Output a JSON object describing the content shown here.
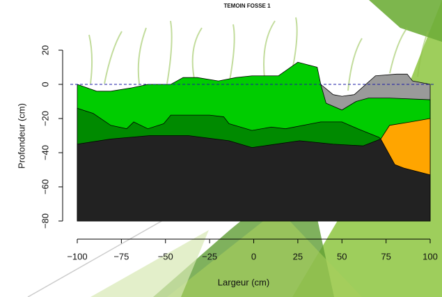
{
  "chart_data": {
    "type": "area",
    "title": "TEMOIN FOSSE 1",
    "x_label": "Largeur (cm)",
    "y_label": "Profondeur (cm)",
    "xlim": [
      -100,
      100
    ],
    "ylim": [
      -80,
      20
    ],
    "xticks": [
      {
        "value": -100,
        "label": "−100"
      },
      {
        "value": -75,
        "label": "−75"
      },
      {
        "value": -50,
        "label": "−50"
      },
      {
        "value": -25,
        "label": "−25"
      },
      0,
      25,
      50,
      75,
      100
    ],
    "yticks": [
      {
        "value": -80,
        "label": "−80"
      },
      {
        "value": -60,
        "label": "−60"
      },
      {
        "value": -40,
        "label": "−40"
      },
      {
        "value": -20,
        "label": "−20"
      },
      0,
      20
    ],
    "reference_line": {
      "value": 0,
      "color": "#1a1aa6"
    },
    "series": [
      {
        "color": "#9a9a9a",
        "x": [
          38,
          45,
          50,
          57,
          69,
          81,
          87,
          90,
          100
        ],
        "values": [
          0,
          -6,
          -7,
          -6,
          5,
          6,
          6,
          2,
          0
        ]
      },
      {
        "color": "#00cc00",
        "x": [
          -100,
          -89,
          -81,
          -69,
          -60,
          -47,
          -40,
          -32,
          -20,
          -10,
          -1,
          14,
          25,
          36,
          38,
          41,
          50,
          58,
          65,
          77,
          100
        ],
        "values": [
          0,
          -4,
          -4,
          -2,
          0,
          0,
          4,
          4,
          2,
          4,
          5,
          5,
          13,
          10,
          0,
          -11,
          -15,
          -10,
          -8,
          -8,
          -9
        ]
      },
      {
        "color": "#008a00",
        "x": [
          -100,
          -91,
          -81,
          -72,
          -68,
          -60,
          -51,
          -47,
          -25,
          -17,
          -14,
          -1,
          10,
          18,
          38,
          50,
          59,
          71,
          72
        ],
        "values": [
          -14,
          -17,
          -24,
          -26,
          -22,
          -26,
          -23,
          -18,
          -18,
          -19,
          -23,
          -27,
          -25,
          -26,
          -22,
          -22,
          -26,
          -31,
          -32
        ]
      },
      {
        "color": "#ffa500",
        "x": [
          72,
          77,
          89,
          100
        ],
        "values": [
          -32,
          -24,
          -22,
          -20
        ]
      },
      {
        "color": "#222222",
        "x": [
          -100,
          -81,
          -59,
          -37,
          -14,
          -1,
          26,
          45,
          62,
          72,
          80,
          85,
          100
        ],
        "values": [
          -35,
          -32,
          -30,
          -30,
          -33,
          -37,
          -33,
          -35,
          -36,
          -32,
          -47,
          -49,
          -53
        ]
      }
    ]
  }
}
